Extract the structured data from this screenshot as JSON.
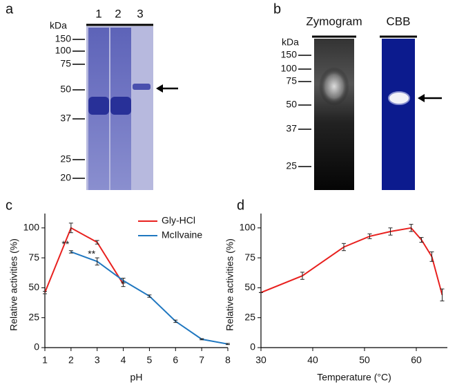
{
  "panel_a": {
    "letter": "a",
    "unit": "kDa",
    "lanes": [
      "1",
      "2",
      "3"
    ],
    "markers": [
      150,
      100,
      75,
      50,
      37,
      25,
      20
    ]
  },
  "panel_b": {
    "letter": "b",
    "lanes": [
      "Zymogram",
      "CBB"
    ],
    "unit": "kDa",
    "markers": [
      150,
      100,
      75,
      50,
      37,
      25
    ]
  },
  "chart_data": [
    {
      "type": "line",
      "letter": "c",
      "xlabel": "pH",
      "ylabel": "Relative activities (%)",
      "x": [
        1,
        2,
        3,
        4,
        5,
        6,
        7,
        8
      ],
      "xlim": [
        1,
        8
      ],
      "xticks": [
        1,
        2,
        3,
        4,
        5,
        6,
        7,
        8
      ],
      "ylim": [
        0,
        112
      ],
      "yticks": [
        0,
        25,
        50,
        75,
        100
      ],
      "legend": "top-right",
      "series": [
        {
          "name": "Gly-HCl",
          "color": "#e8201e",
          "values": [
            46,
            100,
            88,
            53,
            null,
            null,
            null,
            null
          ],
          "errors": [
            1,
            4,
            1.5,
            2,
            null,
            null,
            null,
            null
          ]
        },
        {
          "name": "McIlvaine",
          "color": "#1f77c0",
          "values": [
            null,
            80,
            72,
            56,
            43,
            22,
            7,
            3
          ],
          "errors": [
            null,
            1,
            3,
            2,
            1,
            1,
            0.5,
            0.5
          ]
        }
      ],
      "annotations": [
        {
          "text": "**",
          "x": 2
        },
        {
          "text": "**",
          "x": 3
        }
      ]
    },
    {
      "type": "line",
      "letter": "d",
      "xlabel": "Temperature (°C)",
      "ylabel": "Relative activities (%)",
      "x": [
        30,
        38,
        46,
        51,
        55,
        59,
        61,
        63,
        65
      ],
      "xlim": [
        30,
        66
      ],
      "xticks": [
        30,
        40,
        50,
        60
      ],
      "ylim": [
        0,
        112
      ],
      "yticks": [
        0,
        25,
        50,
        75,
        100
      ],
      "series": [
        {
          "name": null,
          "color": "#e8201e",
          "values": [
            46,
            60,
            84,
            93,
            97,
            100,
            90,
            76,
            44
          ],
          "errors": [
            0,
            3,
            3,
            2,
            3,
            3,
            2,
            4,
            5
          ]
        }
      ]
    }
  ]
}
